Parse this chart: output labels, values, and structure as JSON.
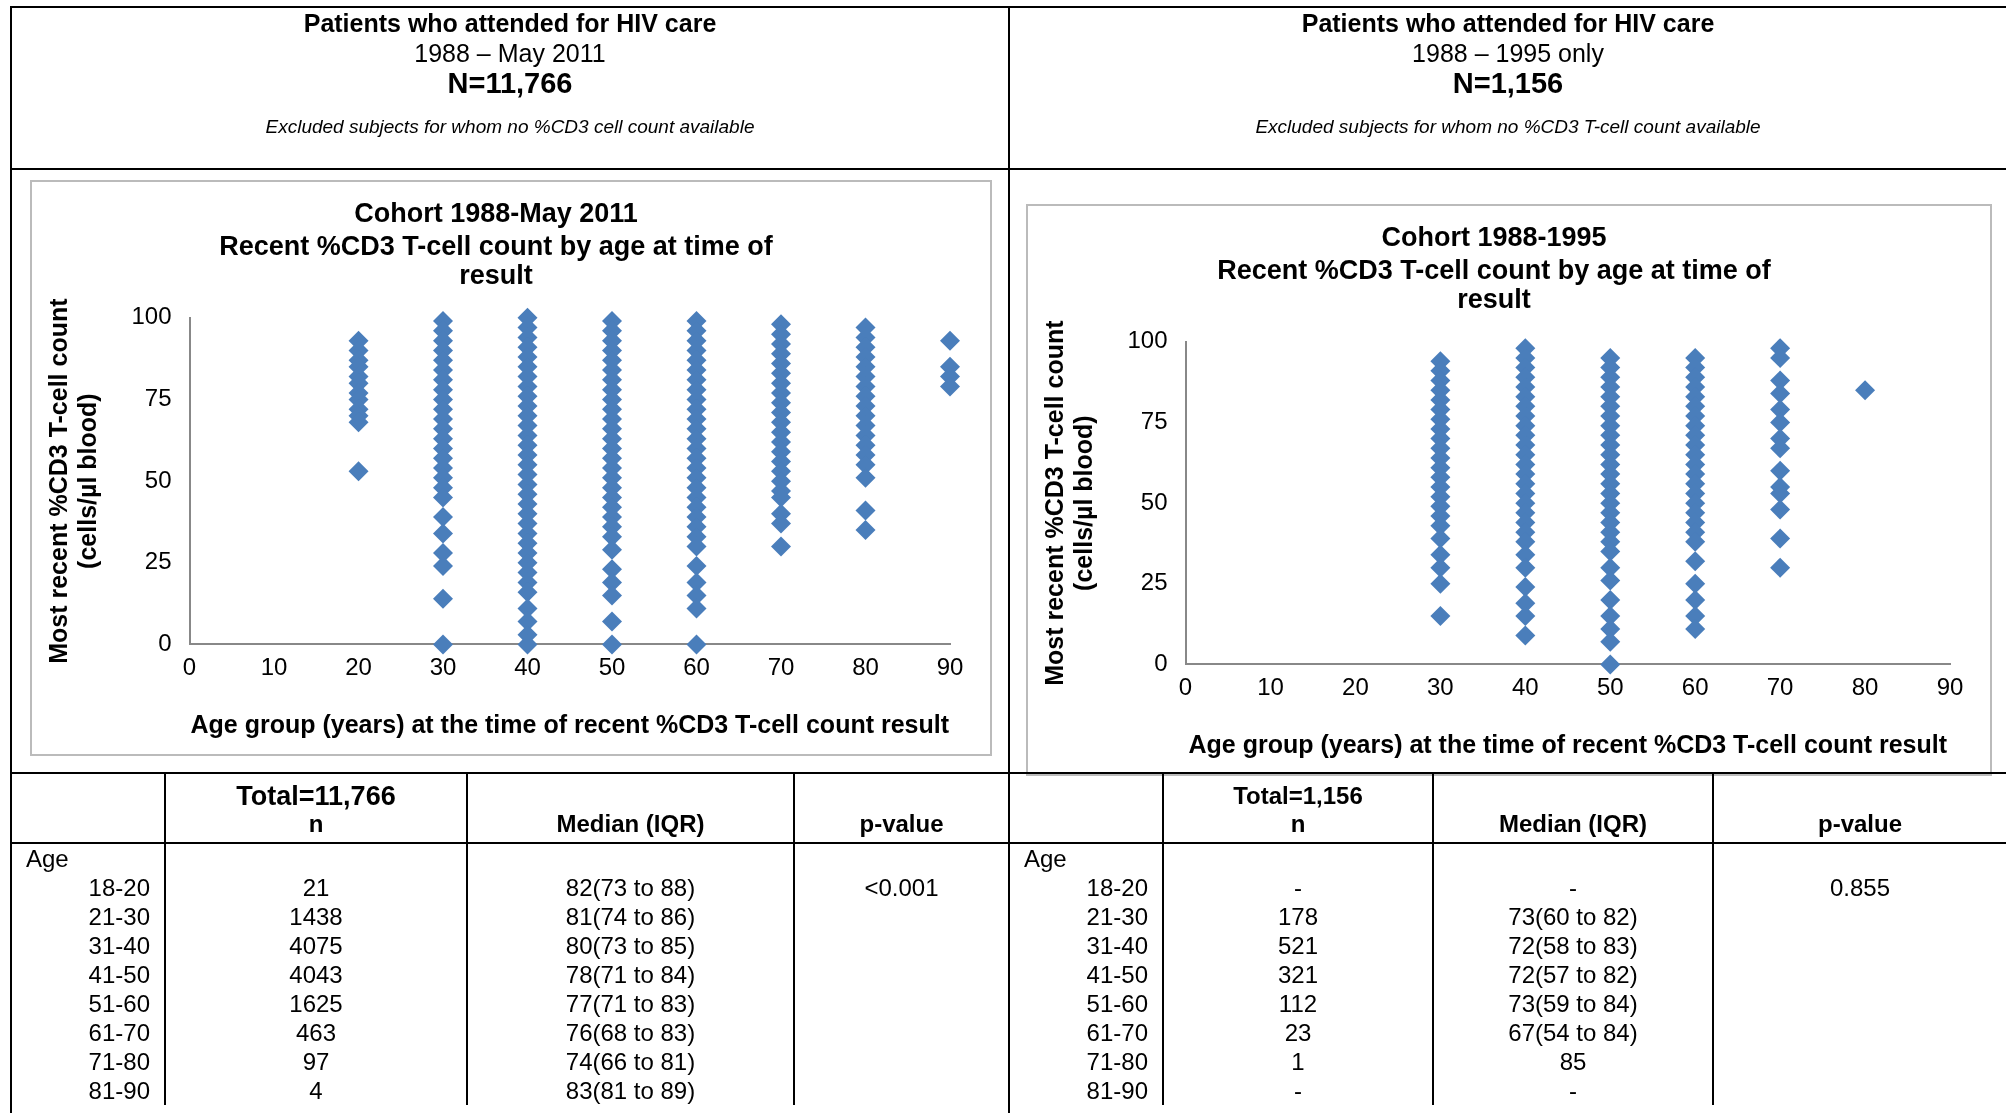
{
  "chart_data": [
    {
      "type": "scatter",
      "title": "Cohort 1988-May 2011",
      "subtitle": "Recent %CD3 T-cell count by age at time of result",
      "xlabel": "Age group (years) at the time of recent %CD3 T-cell count result",
      "ylabel": "Most recent %CD3 T-cell count (cells/µl blood)",
      "series": [
        {
          "color": "#4a7ebb",
          "x": [
            20,
            20,
            20,
            20,
            20,
            20,
            20,
            20,
            20,
            20,
            20,
            20,
            30,
            30,
            30,
            30,
            30,
            30,
            30,
            30,
            30,
            30,
            30,
            30,
            30,
            30,
            30,
            30,
            30,
            30,
            30,
            30,
            30,
            30,
            30,
            30,
            30,
            40,
            40,
            40,
            40,
            40,
            40,
            40,
            40,
            40,
            40,
            40,
            40,
            40,
            40,
            40,
            40,
            40,
            40,
            40,
            40,
            40,
            40,
            40,
            40,
            40,
            40,
            40,
            40,
            40,
            40,
            40,
            40,
            40,
            50,
            50,
            50,
            50,
            50,
            50,
            50,
            50,
            50,
            50,
            50,
            50,
            50,
            50,
            50,
            50,
            50,
            50,
            50,
            50,
            50,
            50,
            50,
            50,
            50,
            50,
            50,
            50,
            50,
            60,
            60,
            60,
            60,
            60,
            60,
            60,
            60,
            60,
            60,
            60,
            60,
            60,
            60,
            60,
            60,
            60,
            60,
            60,
            60,
            60,
            60,
            60,
            60,
            60,
            60,
            60,
            60,
            60,
            70,
            70,
            70,
            70,
            70,
            70,
            70,
            70,
            70,
            70,
            70,
            70,
            70,
            70,
            70,
            70,
            70,
            70,
            70,
            70,
            70,
            70,
            80,
            80,
            80,
            80,
            80,
            80,
            80,
            80,
            80,
            80,
            80,
            80,
            80,
            80,
            80,
            80,
            80,
            80,
            90,
            90,
            90,
            90
          ],
          "values": [
            93,
            90,
            87,
            85,
            82,
            80,
            77,
            75,
            72,
            70,
            68,
            53,
            99,
            96,
            93,
            90,
            87,
            84,
            81,
            78,
            75,
            72,
            69,
            66,
            63,
            60,
            57,
            54,
            51,
            48,
            45,
            39,
            34,
            28,
            24,
            14,
            0,
            100,
            97,
            94,
            91,
            88,
            85,
            82,
            79,
            76,
            73,
            70,
            67,
            64,
            61,
            58,
            55,
            52,
            49,
            46,
            43,
            40,
            37,
            34,
            31,
            28,
            25,
            22,
            19,
            16,
            11,
            7,
            3,
            0,
            99,
            96,
            93,
            90,
            87,
            84,
            81,
            78,
            75,
            72,
            69,
            66,
            63,
            60,
            57,
            54,
            51,
            48,
            45,
            42,
            39,
            36,
            33,
            29,
            23,
            19,
            15,
            7,
            0,
            99,
            96,
            93,
            90,
            87,
            84,
            81,
            78,
            75,
            72,
            69,
            66,
            63,
            60,
            57,
            54,
            51,
            48,
            45,
            42,
            39,
            36,
            33,
            30,
            24,
            19,
            15,
            11,
            0,
            98,
            95,
            92,
            89,
            86,
            83,
            80,
            77,
            74,
            71,
            68,
            65,
            62,
            59,
            56,
            53,
            50,
            47,
            45,
            40,
            37,
            30,
            97,
            94,
            91,
            88,
            85,
            82,
            79,
            76,
            73,
            70,
            67,
            64,
            61,
            58,
            55,
            51,
            41,
            35,
            93,
            85,
            82,
            79
          ]
        }
      ],
      "xlim": [
        0,
        90
      ],
      "xticks": [
        0,
        10,
        20,
        30,
        40,
        50,
        60,
        70,
        80,
        90
      ],
      "ylim": [
        0,
        100
      ],
      "yticks": [
        0,
        25,
        50,
        75,
        100
      ],
      "marker": "diamond",
      "grid": false,
      "legend": false,
      "annotations": [
        "Patients who attended for HIV care",
        "1988 – May 2011",
        "N=11,766",
        "Excluded subjects for whom no %CD3 cell count available",
        "Total=11,766",
        "n",
        "Median (IQR)",
        "p-value",
        "Age",
        "<0.001",
        "18-20",
        "21",
        "82(73 to 88)",
        "21-30",
        "1438",
        "81(74 to 86)",
        "31-40",
        "4075",
        "80(73 to 85)",
        "41-50",
        "4043",
        "78(71 to 84)",
        "51-60",
        "1625",
        "77(71 to 83)",
        "61-70",
        "463",
        "76(68 to 83)",
        "71-80",
        "97",
        "74(66 to 81)",
        "81-90",
        "4",
        "83(81 to 89)"
      ]
    },
    {
      "type": "scatter",
      "title": "Cohort 1988-1995",
      "subtitle": "Recent %CD3 T-cell count by age at time of result",
      "xlabel": "Age group (years) at the time of recent %CD3 T-cell count result",
      "ylabel": "Most recent %CD3 T-cell count (cells/µl blood)",
      "series": [
        {
          "color": "#4a7ebb",
          "x": [
            30,
            30,
            30,
            30,
            30,
            30,
            30,
            30,
            30,
            30,
            30,
            30,
            30,
            30,
            30,
            30,
            30,
            30,
            30,
            30,
            30,
            30,
            30,
            40,
            40,
            40,
            40,
            40,
            40,
            40,
            40,
            40,
            40,
            40,
            40,
            40,
            40,
            40,
            40,
            40,
            40,
            40,
            40,
            40,
            40,
            40,
            40,
            40,
            40,
            40,
            50,
            50,
            50,
            50,
            50,
            50,
            50,
            50,
            50,
            50,
            50,
            50,
            50,
            50,
            50,
            50,
            50,
            50,
            50,
            50,
            50,
            50,
            50,
            50,
            50,
            50,
            50,
            50,
            60,
            60,
            60,
            60,
            60,
            60,
            60,
            60,
            60,
            60,
            60,
            60,
            60,
            60,
            60,
            60,
            60,
            60,
            60,
            60,
            60,
            60,
            60,
            60,
            60,
            70,
            70,
            70,
            70,
            70,
            70,
            70,
            70,
            70,
            70,
            70,
            70,
            70,
            70,
            80
          ],
          "values": [
            94,
            91,
            88,
            85,
            82,
            79,
            76,
            73,
            70,
            67,
            64,
            61,
            58,
            55,
            52,
            49,
            46,
            43,
            39,
            34,
            30,
            25,
            15,
            98,
            95,
            92,
            89,
            86,
            83,
            80,
            77,
            74,
            71,
            68,
            65,
            62,
            59,
            56,
            53,
            50,
            47,
            44,
            41,
            38,
            34,
            30,
            24,
            19,
            15,
            9,
            95,
            92,
            89,
            86,
            83,
            80,
            77,
            74,
            71,
            68,
            65,
            62,
            59,
            56,
            53,
            50,
            47,
            44,
            41,
            38,
            35,
            30,
            26,
            20,
            15,
            11,
            7,
            0,
            95,
            92,
            89,
            86,
            83,
            80,
            77,
            74,
            71,
            68,
            65,
            62,
            59,
            56,
            53,
            50,
            47,
            44,
            41,
            38,
            32,
            25,
            20,
            15,
            11,
            98,
            95,
            88,
            84,
            79,
            75,
            70,
            67,
            60,
            55,
            53,
            48,
            39,
            30,
            85
          ]
        }
      ],
      "xlim": [
        0,
        90
      ],
      "xticks": [
        0,
        10,
        20,
        30,
        40,
        50,
        60,
        70,
        80,
        90
      ],
      "ylim": [
        0,
        100
      ],
      "yticks": [
        0,
        25,
        50,
        75,
        100
      ],
      "marker": "diamond",
      "grid": false,
      "legend": false,
      "annotations": [
        "Patients who attended for HIV care",
        "1988 – 1995 only",
        "N=1,156",
        "Excluded subjects for whom no %CD3 T-cell count available",
        "Total=1,156",
        "n",
        "Median (IQR)",
        "p-value",
        "Age",
        "0.855",
        "18-20",
        "-",
        "-",
        "21-30",
        "178",
        "73(60 to 82)",
        "31-40",
        "521",
        "72(58 to 83)",
        "41-50",
        "321",
        "72(57 to 82)",
        "51-60",
        "112",
        "73(59 to 84)",
        "61-70",
        "23",
        "67(54 to 84)",
        "71-80",
        "1",
        "85",
        "81-90",
        "-",
        "-"
      ]
    }
  ]
}
